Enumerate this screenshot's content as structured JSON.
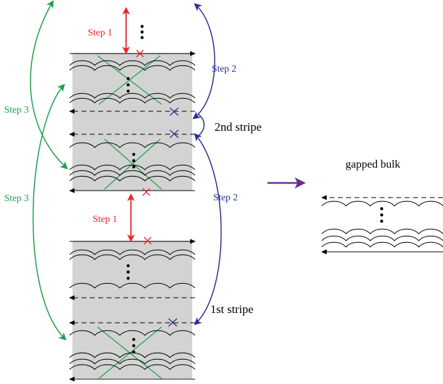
{
  "labels": {
    "step1_top": "Step 1",
    "step1_bottom": "Step 1",
    "step2_top": "Step 2",
    "step2_bottom": "Step 2",
    "step3_top": "Step 3",
    "step3_bottom": "Step 3",
    "stripe2": "2nd stripe",
    "stripe1": "1st stripe",
    "bulk": "gapped bulk"
  },
  "colors": {
    "step1": "#e8232a",
    "step2": "#2b2f8f",
    "step3": "#1aa04a",
    "transition_arrow": "#6a2c91",
    "stripe_fill": "#d3d3d3"
  },
  "icons": {
    "cross": "x-mark-icon",
    "ellipsis": "vertical-dots-icon",
    "arrow": "arrow-icon"
  }
}
